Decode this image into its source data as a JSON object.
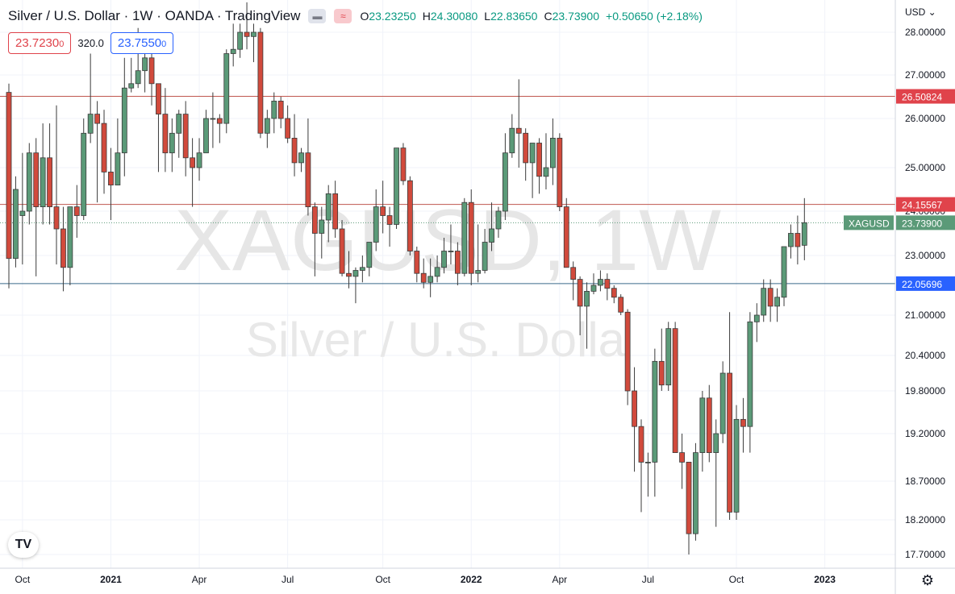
{
  "header": {
    "title": "Silver / U.S. Dollar · 1W · OANDA · TradingView",
    "open_label": "O",
    "open": "23.23250",
    "high_label": "H",
    "high": "24.30080",
    "low_label": "L",
    "low": "22.83650",
    "close_label": "C",
    "close": "23.73900",
    "change": "+0.50650 (+2.18%)"
  },
  "trade": {
    "sell": "23.7230",
    "sell_small": "0",
    "spread": "320.0",
    "buy": "23.7550",
    "buy_small": "0"
  },
  "currency": "USD ⌄",
  "watermark": {
    "symbol": "XAGUSD, 1W",
    "name": "Silver / U.S. Dolla"
  },
  "colors": {
    "up": "#5b9a78",
    "down": "#d14a3c",
    "resistance": "#c0574f",
    "support": "#3a6a8a"
  },
  "chart_data": {
    "type": "candlestick",
    "symbol": "XAGUSD",
    "interval": "1W",
    "last_price": 23.739,
    "ylim": [
      17.45,
      28.35
    ],
    "y_ticks": [
      "28.00000",
      "27.00000",
      "26.00000",
      "25.00000",
      "24.00000",
      "23.00000",
      "21.00000",
      "20.40000",
      "19.80000",
      "19.20000",
      "18.70000",
      "18.20000",
      "17.70000"
    ],
    "y_tick_values": [
      28.0,
      27.0,
      26.0,
      25.0,
      24.0,
      23.0,
      21.0,
      20.4,
      19.8,
      19.2,
      18.7,
      18.2,
      17.7
    ],
    "x_ticks": [
      {
        "label": "Oct",
        "bold": false,
        "index": 2
      },
      {
        "label": "2021",
        "bold": true,
        "index": 15
      },
      {
        "label": "Apr",
        "bold": false,
        "index": 28
      },
      {
        "label": "Jul",
        "bold": false,
        "index": 41
      },
      {
        "label": "Oct",
        "bold": false,
        "index": 55
      },
      {
        "label": "2022",
        "bold": true,
        "index": 68
      },
      {
        "label": "Apr",
        "bold": false,
        "index": 81
      },
      {
        "label": "Jul",
        "bold": false,
        "index": 94
      },
      {
        "label": "Oct",
        "bold": false,
        "index": 107
      },
      {
        "label": "2023",
        "bold": true,
        "index": 120
      }
    ],
    "horizontal_lines": [
      {
        "price": 26.50824,
        "label": "26.50824",
        "kind": "resistance"
      },
      {
        "price": 24.15567,
        "label": "24.15567",
        "kind": "resistance"
      },
      {
        "price": 22.05696,
        "label": "22.05696",
        "kind": "support"
      }
    ],
    "ohlc": [
      [
        26.6,
        26.8,
        21.9,
        22.9
      ],
      [
        22.9,
        24.8,
        22.6,
        24.5
      ],
      [
        23.9,
        25.3,
        22.7,
        24.0
      ],
      [
        24.0,
        25.5,
        23.7,
        25.3
      ],
      [
        25.3,
        25.6,
        22.3,
        24.1
      ],
      [
        24.1,
        25.9,
        23.7,
        25.2
      ],
      [
        25.2,
        25.9,
        23.7,
        24.1
      ],
      [
        24.1,
        26.3,
        22.7,
        23.6
      ],
      [
        23.6,
        24.1,
        21.8,
        22.6
      ],
      [
        22.6,
        24.1,
        22.0,
        24.1
      ],
      [
        24.1,
        24.6,
        23.4,
        23.9
      ],
      [
        23.9,
        26.0,
        23.8,
        25.7
      ],
      [
        25.7,
        27.5,
        25.5,
        26.1
      ],
      [
        26.1,
        26.4,
        24.2,
        25.9
      ],
      [
        25.9,
        26.2,
        24.4,
        24.9
      ],
      [
        24.9,
        25.4,
        23.8,
        24.6
      ],
      [
        24.6,
        26.0,
        24.6,
        25.3
      ],
      [
        25.3,
        27.4,
        24.8,
        26.7
      ],
      [
        26.7,
        27.4,
        26.6,
        26.8
      ],
      [
        26.8,
        28.1,
        26.7,
        27.1
      ],
      [
        27.1,
        28.0,
        26.6,
        27.4
      ],
      [
        27.4,
        27.9,
        26.3,
        26.8
      ],
      [
        26.8,
        26.8,
        24.9,
        26.1
      ],
      [
        26.1,
        26.7,
        24.9,
        25.3
      ],
      [
        25.3,
        26.0,
        24.9,
        25.7
      ],
      [
        25.7,
        26.2,
        25.2,
        26.1
      ],
      [
        26.1,
        26.4,
        24.8,
        25.2
      ],
      [
        25.2,
        25.6,
        24.1,
        25.0
      ],
      [
        25.0,
        25.6,
        24.7,
        25.3
      ],
      [
        25.3,
        26.2,
        25.3,
        26.0
      ],
      [
        26.0,
        26.6,
        25.4,
        26.0
      ],
      [
        26.0,
        26.1,
        25.5,
        25.9
      ],
      [
        25.9,
        27.6,
        25.7,
        27.5
      ],
      [
        27.5,
        28.2,
        27.2,
        27.6
      ],
      [
        27.6,
        28.2,
        27.4,
        28.0
      ],
      [
        28.0,
        28.7,
        27.6,
        27.9
      ],
      [
        27.9,
        28.2,
        27.3,
        28.0
      ],
      [
        28.0,
        28.1,
        25.6,
        25.7
      ],
      [
        25.7,
        26.2,
        25.4,
        26.0
      ],
      [
        26.0,
        26.6,
        25.7,
        26.4
      ],
      [
        26.4,
        26.5,
        25.8,
        26.0
      ],
      [
        26.0,
        26.3,
        25.5,
        25.6
      ],
      [
        25.6,
        26.1,
        24.8,
        25.1
      ],
      [
        25.1,
        25.4,
        24.9,
        25.3
      ],
      [
        25.3,
        26.0,
        23.9,
        24.1
      ],
      [
        24.1,
        24.2,
        22.3,
        23.5
      ],
      [
        23.5,
        24.1,
        22.9,
        23.8
      ],
      [
        23.8,
        24.6,
        23.3,
        24.4
      ],
      [
        24.4,
        24.7,
        23.4,
        23.6
      ],
      [
        23.6,
        23.8,
        22.3,
        22.4
      ],
      [
        22.4,
        23.1,
        21.9,
        22.3
      ],
      [
        22.3,
        22.6,
        21.4,
        22.5
      ],
      [
        22.5,
        23.0,
        22.1,
        22.6
      ],
      [
        22.6,
        23.2,
        22.3,
        23.3
      ],
      [
        23.3,
        24.5,
        23.1,
        24.1
      ],
      [
        24.1,
        24.7,
        23.5,
        23.9
      ],
      [
        23.9,
        24.1,
        23.2,
        23.7
      ],
      [
        23.7,
        25.4,
        23.6,
        25.4
      ],
      [
        25.4,
        25.5,
        24.6,
        24.7
      ],
      [
        24.7,
        24.8,
        23.0,
        23.1
      ],
      [
        23.1,
        23.2,
        22.1,
        22.4
      ],
      [
        22.4,
        22.9,
        21.9,
        22.1
      ],
      [
        22.1,
        22.9,
        21.6,
        22.3
      ],
      [
        22.3,
        23.0,
        22.1,
        22.6
      ],
      [
        22.6,
        23.4,
        22.4,
        23.1
      ],
      [
        23.1,
        23.7,
        22.7,
        23.1
      ],
      [
        23.1,
        23.3,
        22.0,
        22.4
      ],
      [
        22.4,
        24.3,
        22.3,
        24.2
      ],
      [
        24.2,
        24.5,
        22.0,
        22.4
      ],
      [
        22.4,
        23.7,
        22.1,
        22.5
      ],
      [
        22.5,
        23.6,
        22.4,
        23.3
      ],
      [
        23.3,
        24.2,
        23.1,
        23.6
      ],
      [
        23.6,
        24.1,
        23.4,
        24.0
      ],
      [
        24.0,
        25.7,
        23.8,
        25.3
      ],
      [
        25.3,
        26.1,
        25.2,
        25.8
      ],
      [
        25.8,
        26.9,
        25.0,
        25.7
      ],
      [
        25.7,
        25.8,
        24.7,
        25.1
      ],
      [
        25.1,
        25.5,
        24.3,
        25.5
      ],
      [
        25.5,
        25.6,
        24.4,
        24.8
      ],
      [
        24.8,
        25.7,
        24.5,
        25.0
      ],
      [
        25.0,
        26.0,
        24.6,
        25.6
      ],
      [
        25.6,
        25.7,
        24.0,
        24.1
      ],
      [
        24.1,
        24.3,
        22.6,
        22.6
      ],
      [
        22.6,
        22.8,
        21.5,
        22.2
      ],
      [
        22.2,
        22.3,
        20.7,
        21.3
      ],
      [
        21.3,
        22.1,
        20.5,
        21.8
      ],
      [
        21.8,
        22.4,
        21.7,
        22.0
      ],
      [
        22.0,
        22.5,
        21.8,
        22.2
      ],
      [
        22.2,
        22.4,
        21.5,
        21.9
      ],
      [
        21.9,
        22.0,
        21.4,
        21.6
      ],
      [
        21.6,
        21.7,
        21.0,
        21.1
      ],
      [
        21.1,
        21.2,
        19.6,
        19.8
      ],
      [
        19.8,
        20.2,
        18.8,
        19.3
      ],
      [
        19.3,
        19.4,
        18.3,
        18.9
      ],
      [
        18.9,
        19.0,
        18.5,
        18.9
      ],
      [
        18.9,
        20.5,
        18.5,
        20.3
      ],
      [
        20.3,
        20.8,
        19.8,
        19.9
      ],
      [
        19.9,
        20.9,
        19.8,
        20.8
      ],
      [
        20.8,
        20.9,
        19.0,
        19.0
      ],
      [
        19.0,
        19.2,
        18.6,
        18.9
      ],
      [
        18.9,
        18.9,
        17.7,
        18.0
      ],
      [
        18.0,
        19.1,
        17.9,
        19.0
      ],
      [
        19.0,
        19.8,
        18.8,
        19.7
      ],
      [
        19.7,
        19.9,
        18.9,
        19.0
      ],
      [
        19.0,
        19.4,
        18.1,
        19.2
      ],
      [
        19.2,
        20.3,
        19.1,
        20.1
      ],
      [
        20.1,
        21.1,
        18.2,
        18.3
      ],
      [
        18.3,
        19.6,
        18.2,
        19.4
      ],
      [
        19.4,
        19.7,
        19.0,
        19.3
      ],
      [
        19.3,
        21.1,
        19.0,
        20.9
      ],
      [
        20.9,
        21.4,
        20.6,
        21.0
      ],
      [
        21.0,
        22.2,
        20.9,
        21.9
      ],
      [
        21.9,
        22.2,
        20.9,
        21.3
      ],
      [
        21.3,
        21.9,
        20.9,
        21.6
      ],
      [
        21.6,
        23.2,
        21.3,
        23.2
      ],
      [
        23.2,
        23.7,
        22.9,
        23.5
      ],
      [
        23.5,
        23.9,
        22.7,
        23.2
      ],
      [
        23.23,
        24.3,
        22.84,
        23.74
      ]
    ]
  }
}
